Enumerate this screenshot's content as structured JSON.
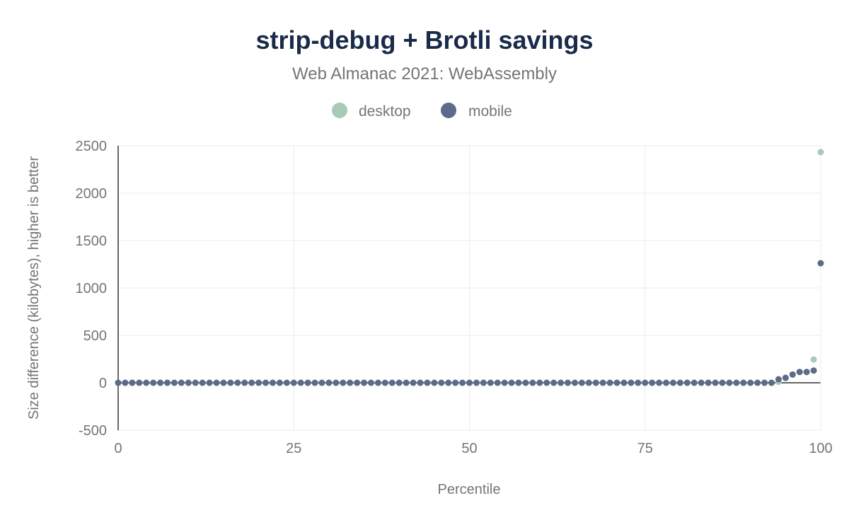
{
  "chart_data": {
    "type": "scatter",
    "title": "strip-debug + Brotli savings",
    "subtitle": "Web Almanac 2021: WebAssembly",
    "xlabel": "Percentile",
    "ylabel": "Size difference (kilobytes), higher is better",
    "xlim": [
      0,
      100
    ],
    "ylim": [
      -500,
      2500
    ],
    "xticks": [
      "0",
      "25",
      "50",
      "75",
      "100"
    ],
    "yticks": [
      "-500",
      "0",
      "500",
      "1000",
      "1500",
      "2000",
      "2500"
    ],
    "grid": true,
    "legend_position": "top",
    "series": [
      {
        "name": "desktop",
        "color": "#a8cbb7",
        "values": [
          0,
          0,
          0,
          0,
          0,
          0,
          0,
          0,
          0,
          0,
          0,
          0,
          0,
          0,
          0,
          0,
          0,
          0,
          0,
          0,
          0,
          0,
          0,
          0,
          0,
          0,
          0,
          0,
          0,
          0,
          0,
          0,
          0,
          0,
          0,
          0,
          0,
          0,
          0,
          0,
          0,
          0,
          0,
          0,
          0,
          0,
          0,
          0,
          0,
          0,
          0,
          0,
          0,
          0,
          0,
          0,
          0,
          0,
          0,
          0,
          0,
          0,
          0,
          0,
          0,
          0,
          0,
          0,
          0,
          0,
          0,
          0,
          0,
          0,
          0,
          0,
          0,
          0,
          0,
          0,
          0,
          0,
          0,
          0,
          0,
          0,
          0,
          0,
          0,
          0,
          0,
          0,
          0,
          0,
          10,
          52,
          87,
          114,
          114,
          246,
          2433
        ]
      },
      {
        "name": "mobile",
        "color": "#5c6b89",
        "values": [
          0,
          0,
          0,
          0,
          0,
          0,
          0,
          0,
          0,
          0,
          0,
          0,
          0,
          0,
          0,
          0,
          0,
          0,
          0,
          0,
          0,
          0,
          0,
          0,
          0,
          0,
          0,
          0,
          0,
          0,
          0,
          0,
          0,
          0,
          0,
          0,
          0,
          0,
          0,
          0,
          0,
          0,
          0,
          0,
          0,
          0,
          0,
          0,
          0,
          0,
          0,
          0,
          0,
          0,
          0,
          0,
          0,
          0,
          0,
          0,
          0,
          0,
          0,
          0,
          0,
          0,
          0,
          0,
          0,
          0,
          0,
          0,
          0,
          0,
          0,
          0,
          0,
          0,
          0,
          0,
          0,
          0,
          0,
          0,
          0,
          0,
          0,
          0,
          0,
          0,
          0,
          0,
          0,
          0,
          37,
          52,
          87,
          114,
          114,
          129,
          1261
        ]
      }
    ]
  }
}
